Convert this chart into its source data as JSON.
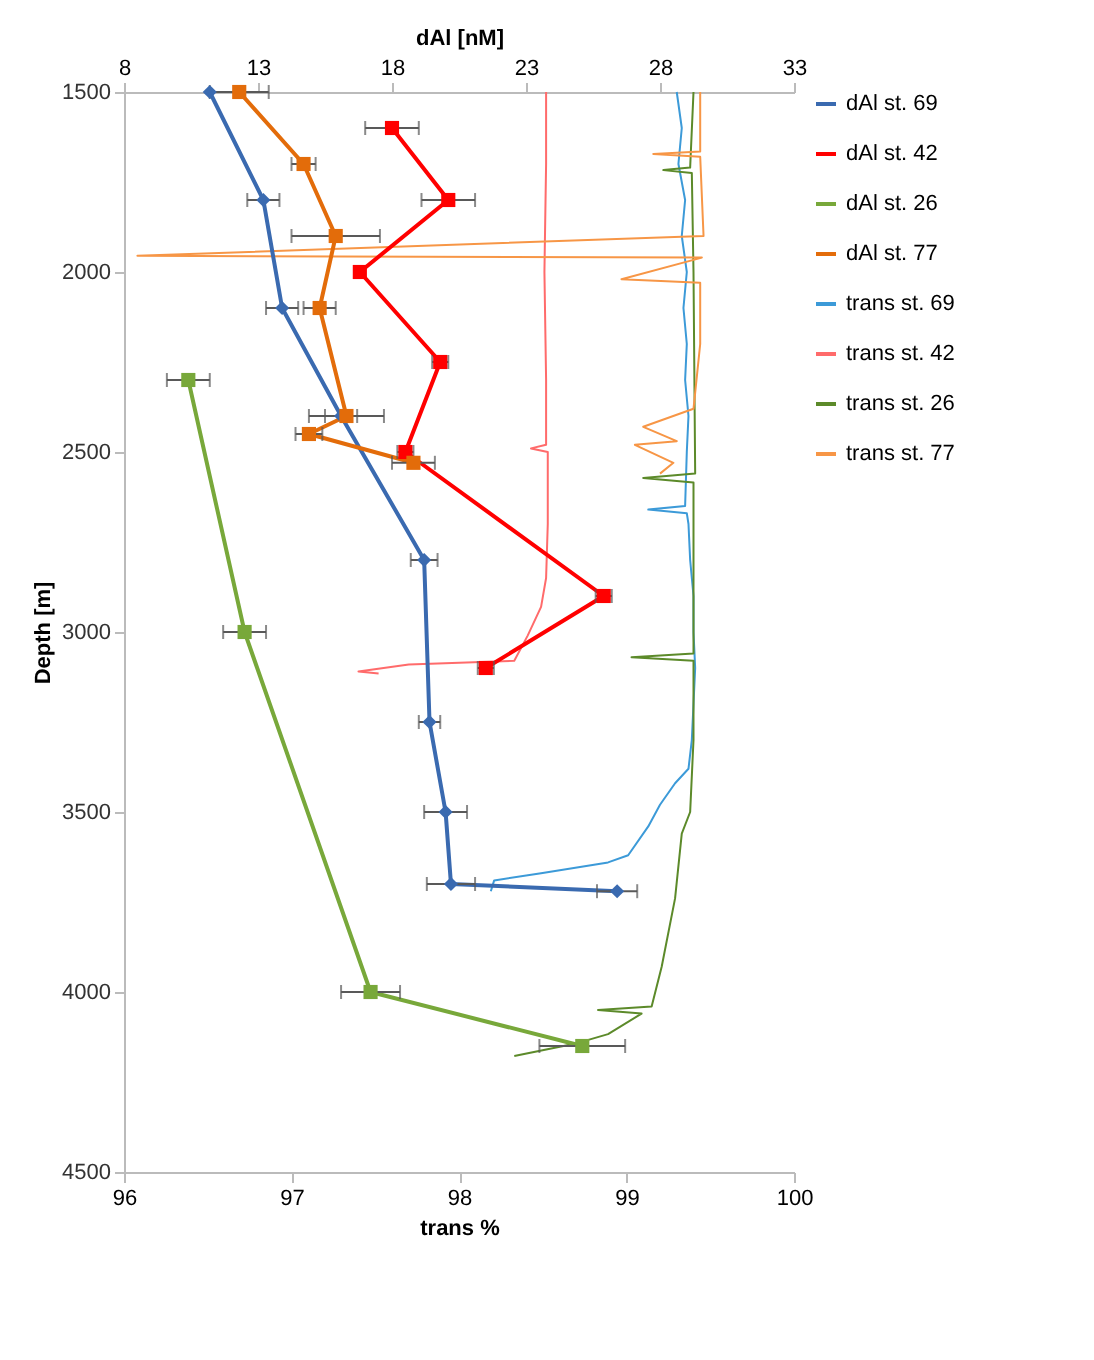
{
  "chart_data": {
    "type": "line",
    "xlabel": "trans %",
    "x2label": "dAl [nM]",
    "ylabel": "Depth [m]",
    "xlim": [
      96,
      100
    ],
    "xticks": [
      96,
      97,
      98,
      99,
      100
    ],
    "x2lim": [
      8,
      33
    ],
    "x2ticks": [
      8,
      13,
      18,
      23,
      28,
      33
    ],
    "ylim": [
      4500,
      1500
    ],
    "yticks": [
      1500,
      2000,
      2500,
      3000,
      3500,
      4000,
      4500
    ],
    "grid": false,
    "legend": "right",
    "series": [
      {
        "name": "dAl st. 69",
        "color": "#3a6ab0",
        "axis": "x2",
        "marker": "diamond",
        "x": [
          11.2,
          13.2,
          13.9,
          16.1,
          19.2,
          19.4,
          20.0,
          20.2,
          26.4
        ],
        "values": [
          1500,
          1800,
          2100,
          2400,
          2800,
          3250,
          3500,
          3700,
          3720
        ],
        "xerrors": [
          null,
          0.6,
          0.6,
          0.6,
          0.5,
          0.4,
          0.8,
          0.9,
          0.75
        ]
      },
      {
        "name": "dAl st. 42",
        "color": "#ff0000",
        "axis": "x2",
        "marker": "square",
        "x": [
          18.0,
          20.1,
          16.8,
          19.8,
          18.5,
          25.9,
          21.5
        ],
        "values": [
          1600,
          1800,
          2000,
          2250,
          2500,
          2900,
          3100
        ],
        "xerrors": [
          1.0,
          1.0,
          null,
          0.3,
          0.3,
          0.3,
          0.3
        ]
      },
      {
        "name": "dAl st. 26",
        "color": "#78a83a",
        "axis": "x2",
        "marker": "square",
        "x": [
          10.4,
          12.5,
          17.2,
          25.1
        ],
        "values": [
          2300,
          3000,
          4000,
          4150
        ],
        "xerrors": [
          0.8,
          0.8,
          1.1,
          1.6
        ]
      },
      {
        "name": "dAl st. 77",
        "color": "#e36c0a",
        "axis": "x2",
        "marker": "square",
        "x": [
          12.3,
          14.7,
          15.9,
          15.3,
          16.3,
          14.9,
          18.8
        ],
        "values": [
          1500,
          1700,
          1900,
          2100,
          2400,
          2450,
          2530
        ],
        "xerrors": [
          1.1,
          0.45,
          1.65,
          0.6,
          1.4,
          0.5,
          0.8
        ]
      },
      {
        "name": "trans st. 69",
        "color": "#3c9ad8",
        "marker": "none",
        "x": [
          99.3,
          99.33,
          99.31,
          99.35,
          99.33,
          99.36,
          99.34,
          99.36,
          99.35,
          99.37,
          99.36,
          99.35,
          99.13,
          99.36,
          99.37,
          99.38,
          99.4,
          99.4,
          99.41,
          99.4,
          99.39,
          99.37,
          99.29,
          99.2,
          99.13,
          99.01,
          98.89,
          98.49,
          98.21,
          98.19
        ],
        "values": [
          1500,
          1600,
          1700,
          1800,
          1900,
          2000,
          2100,
          2200,
          2300,
          2400,
          2500,
          2650,
          2660,
          2670,
          2700,
          2800,
          2900,
          3000,
          3100,
          3200,
          3300,
          3380,
          3420,
          3480,
          3540,
          3620,
          3640,
          3670,
          3690,
          3720
        ]
      },
      {
        "name": "trans st. 42",
        "color": "#ff6b6b",
        "marker": "none",
        "x": [
          98.52,
          98.52,
          98.51,
          98.52,
          98.52,
          98.43,
          98.53,
          98.53,
          98.52,
          98.49,
          98.41,
          98.33,
          97.7,
          97.4,
          97.52
        ],
        "values": [
          1500,
          1700,
          2000,
          2300,
          2480,
          2490,
          2500,
          2700,
          2850,
          2930,
          3010,
          3080,
          3090,
          3110,
          3115
        ]
      },
      {
        "name": "trans st. 26",
        "color": "#5c8a2a",
        "marker": "none",
        "x": [
          99.4,
          99.38,
          99.22,
          99.39,
          99.4,
          99.41,
          99.1,
          99.4,
          99.4,
          99.03,
          99.4,
          99.4,
          99.38,
          99.33,
          99.29,
          99.21,
          99.15,
          98.83,
          99.09,
          98.89,
          98.69,
          98.33
        ],
        "values": [
          1500,
          1710,
          1717,
          1725,
          2000,
          2560,
          2572,
          2585,
          3060,
          3070,
          3080,
          3300,
          3500,
          3560,
          3740,
          3930,
          4040,
          4050,
          4060,
          4117,
          4144,
          4178
        ]
      },
      {
        "name": "trans st. 77",
        "color": "#f79646",
        "marker": "none",
        "x": [
          99.44,
          99.44,
          99.16,
          99.44,
          99.46,
          96.08,
          99.45,
          98.97,
          99.44,
          99.44,
          99.4,
          99.1,
          99.3,
          99.05,
          99.28,
          99.2
        ],
        "values": [
          1500,
          1665,
          1672,
          1680,
          1900,
          1955,
          1960,
          2020,
          2030,
          2200,
          2380,
          2430,
          2470,
          2480,
          2530,
          2560
        ]
      }
    ]
  }
}
